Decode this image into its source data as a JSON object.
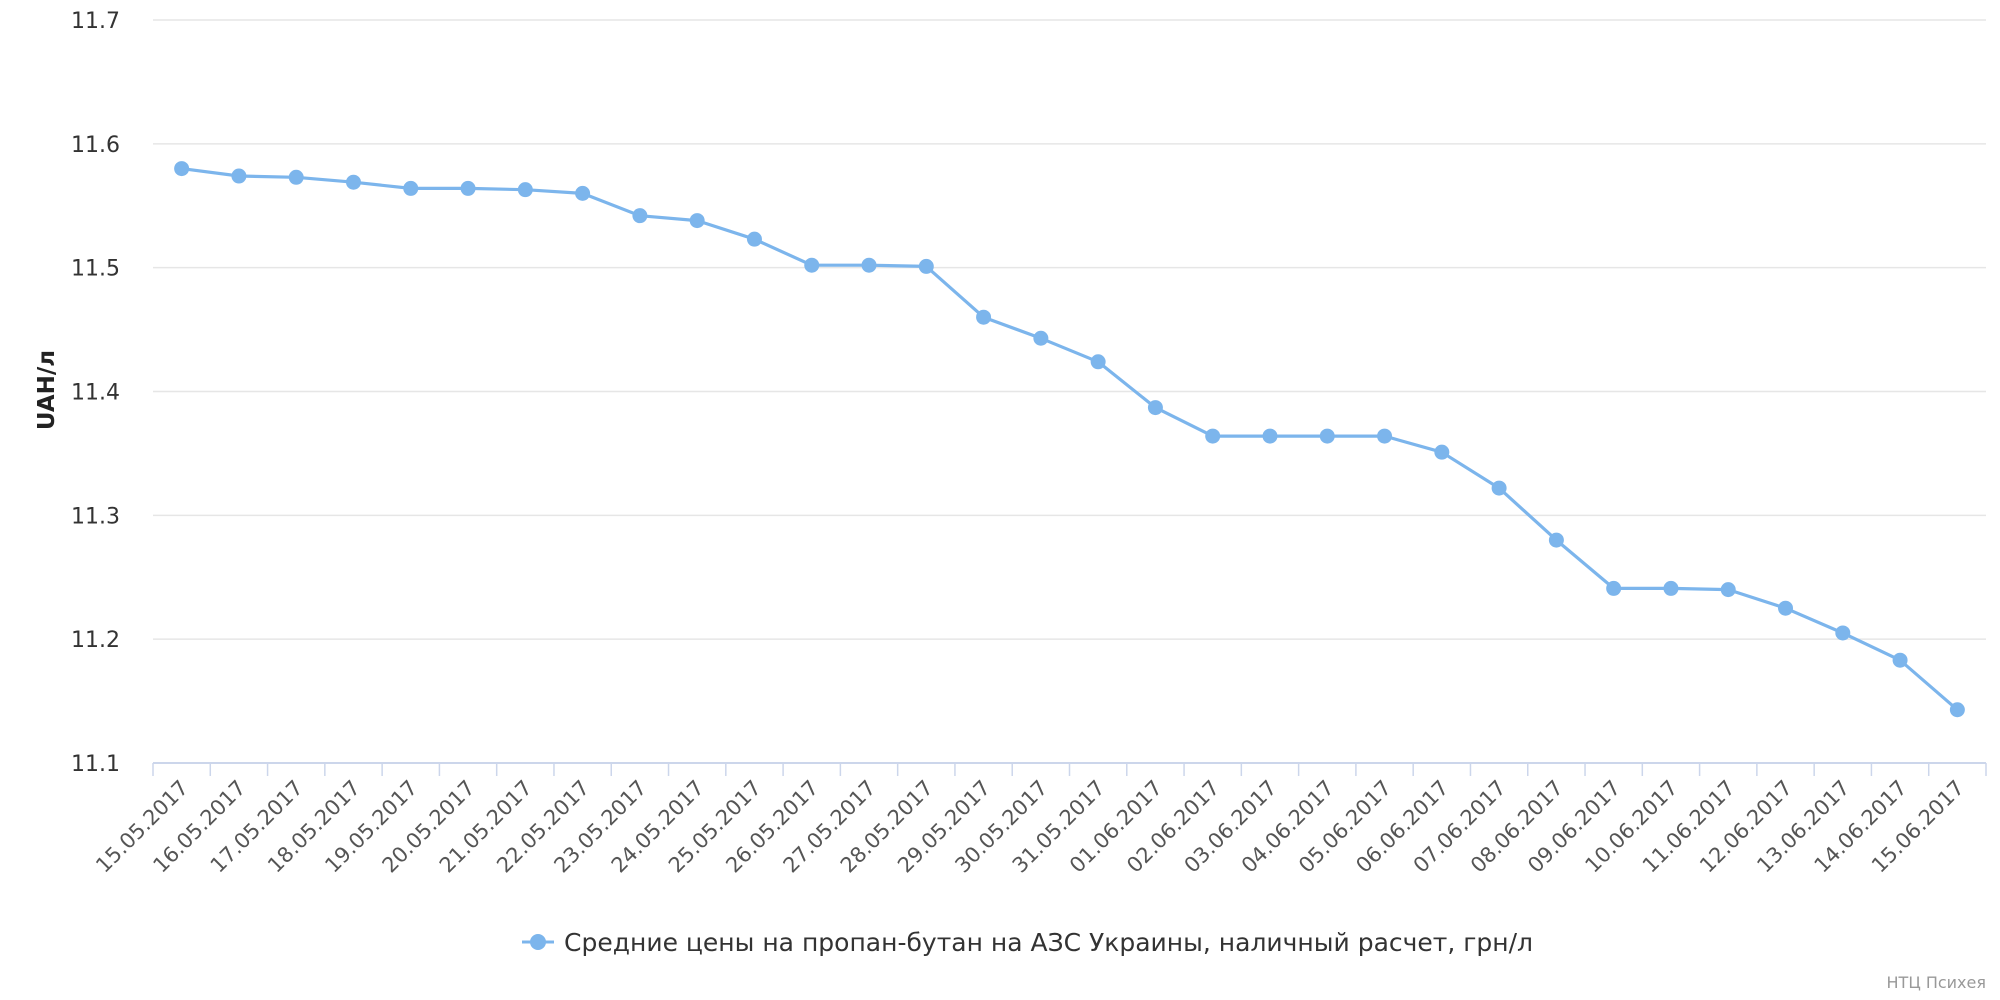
{
  "chart_data": {
    "type": "line",
    "ylabel": "UAH/л",
    "ylim": [
      11.1,
      11.7
    ],
    "yticks": [
      "11.1",
      "11.2",
      "11.3",
      "11.4",
      "11.5",
      "11.6",
      "11.7"
    ],
    "grid": true,
    "legend_position": "bottom-center",
    "color": "#7cb5ec",
    "categories": [
      "15.05.2017",
      "16.05.2017",
      "17.05.2017",
      "18.05.2017",
      "19.05.2017",
      "20.05.2017",
      "21.05.2017",
      "22.05.2017",
      "23.05.2017",
      "24.05.2017",
      "25.05.2017",
      "26.05.2017",
      "27.05.2017",
      "28.05.2017",
      "29.05.2017",
      "30.05.2017",
      "31.05.2017",
      "01.06.2017",
      "02.06.2017",
      "03.06.2017",
      "04.06.2017",
      "05.06.2017",
      "06.06.2017",
      "07.06.2017",
      "08.06.2017",
      "09.06.2017",
      "10.06.2017",
      "11.06.2017",
      "12.06.2017",
      "13.06.2017",
      "14.06.2017",
      "15.06.2017"
    ],
    "series": [
      {
        "name": "Средние цены на пропан-бутан на АЗС Украины, наличный расчет, грн/л",
        "values": [
          11.58,
          11.574,
          11.573,
          11.569,
          11.564,
          11.564,
          11.563,
          11.56,
          11.542,
          11.538,
          11.523,
          11.502,
          11.502,
          11.501,
          11.46,
          11.443,
          11.424,
          11.387,
          11.364,
          11.364,
          11.364,
          11.364,
          11.351,
          11.322,
          11.28,
          11.241,
          11.241,
          11.24,
          11.225,
          11.205,
          11.183,
          11.143
        ]
      }
    ]
  },
  "credits": "НТЦ Психея"
}
